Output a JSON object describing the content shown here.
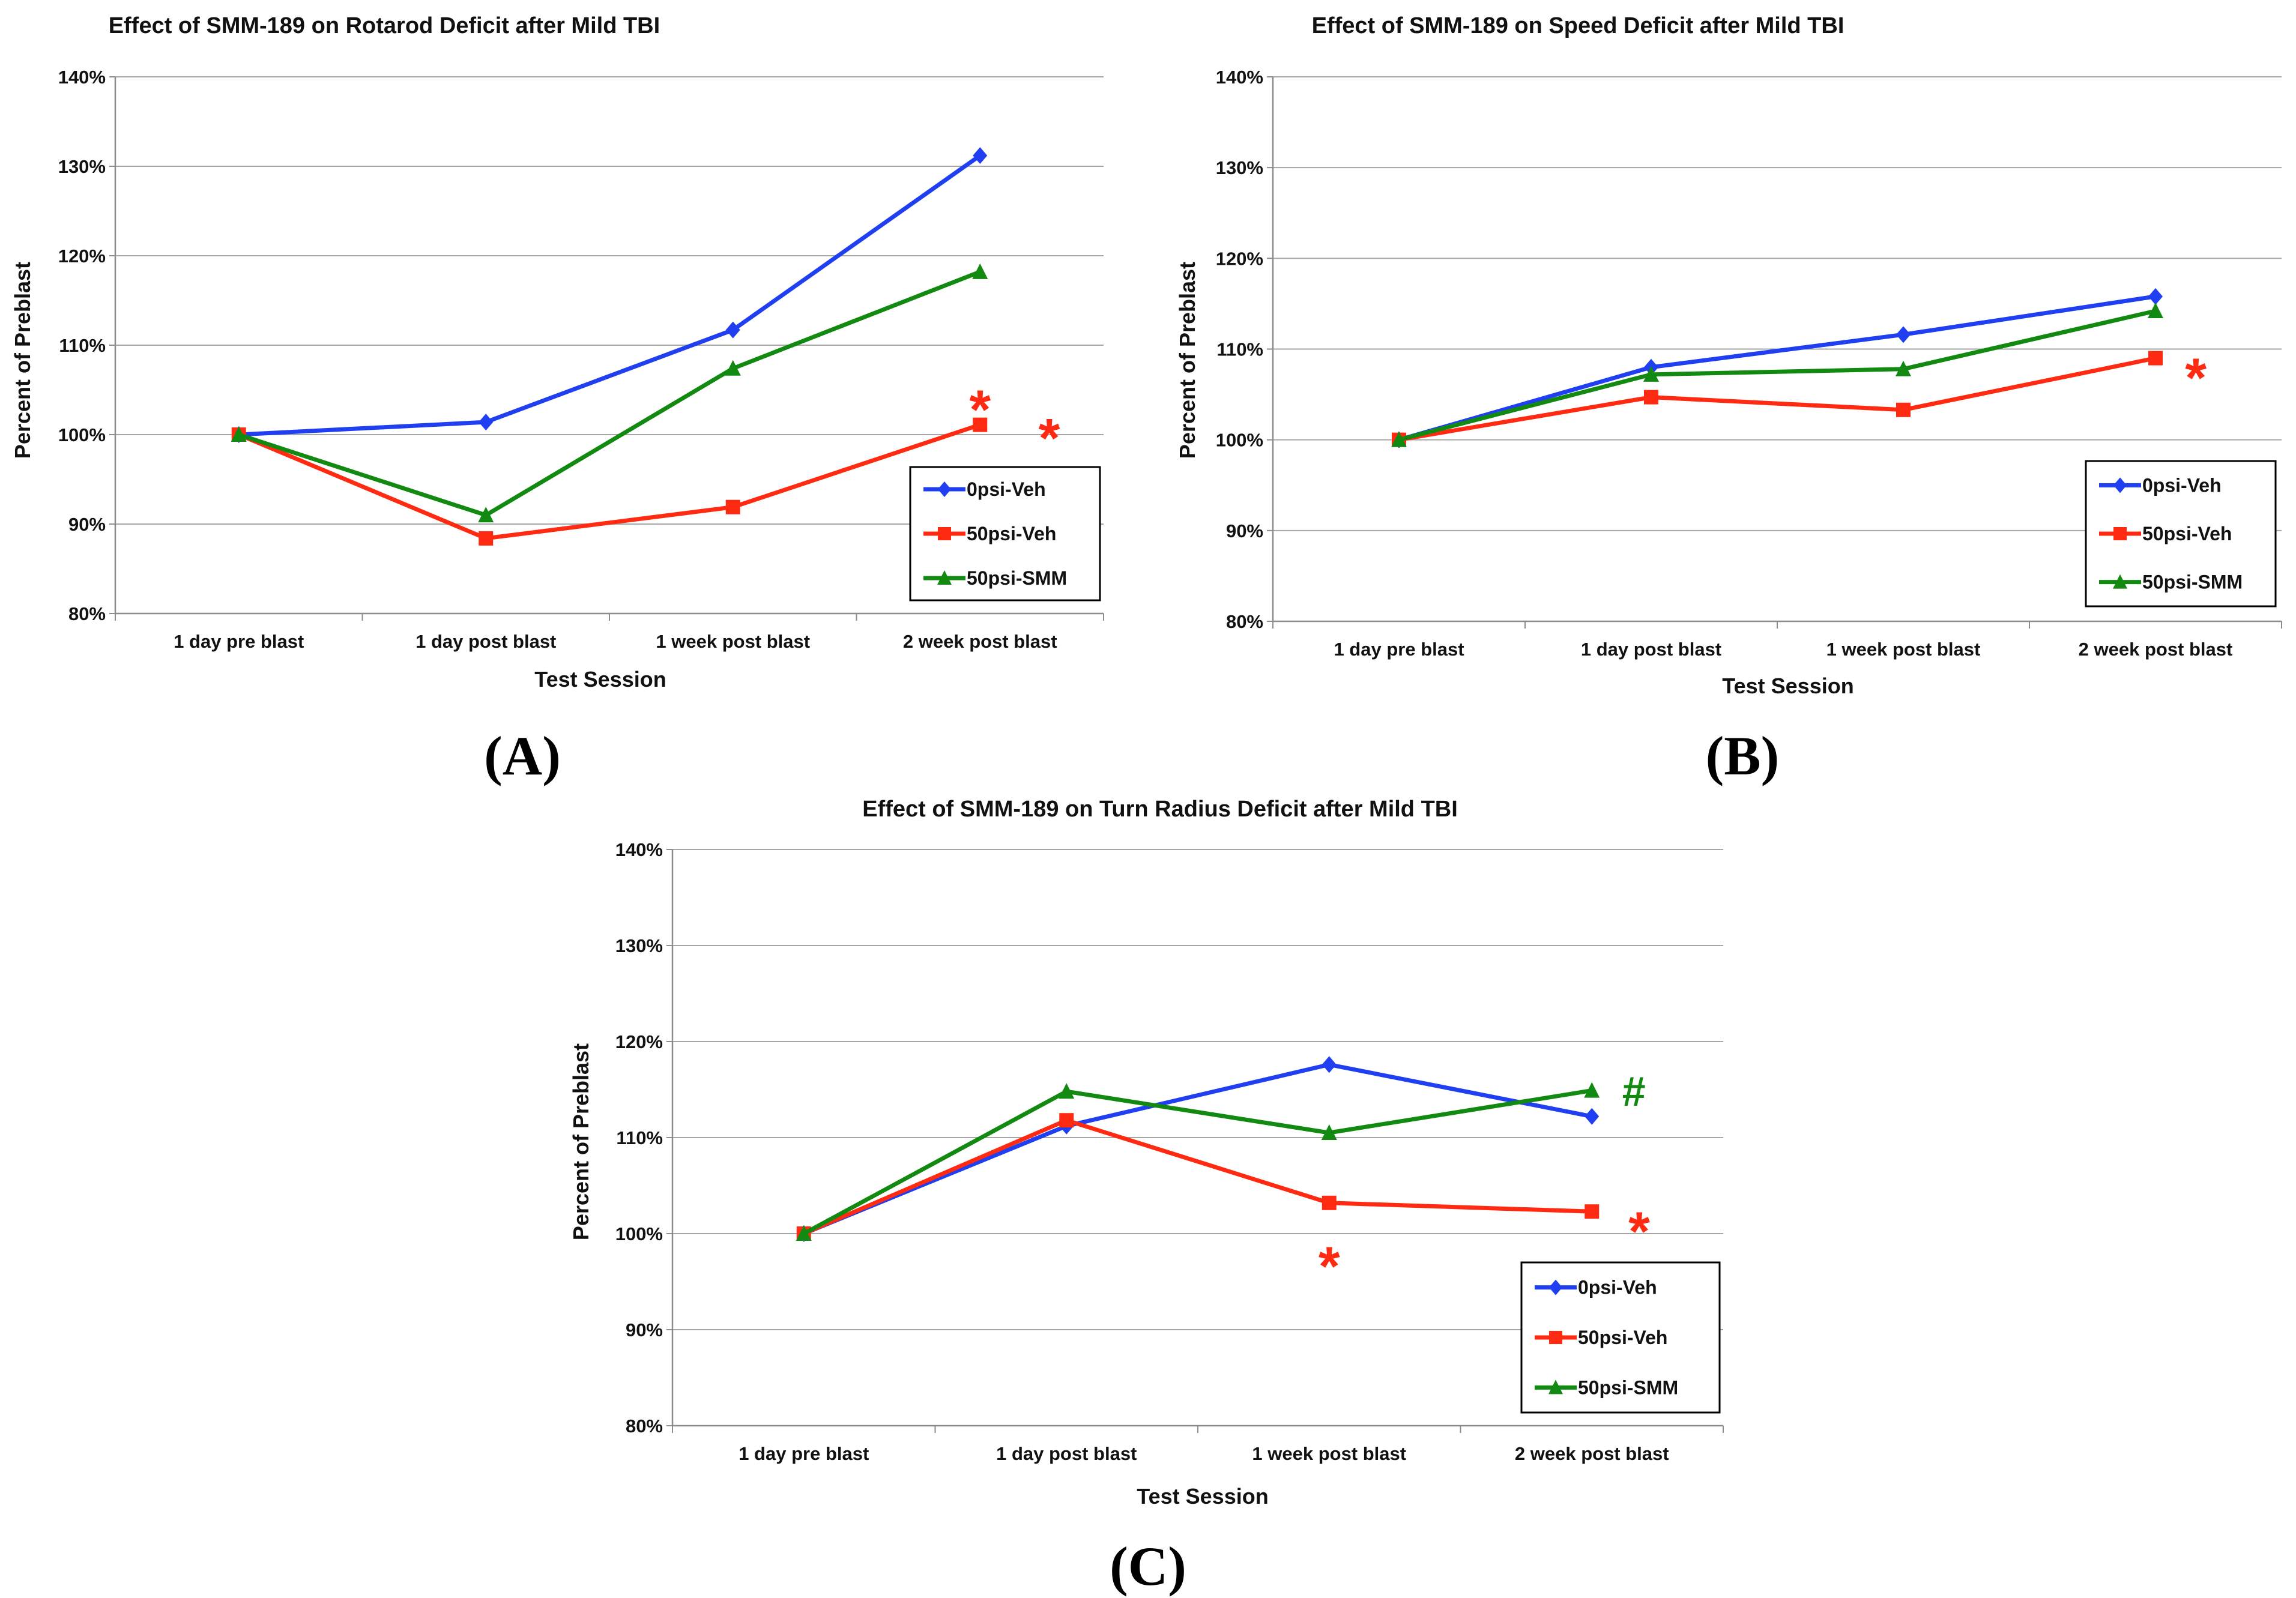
{
  "figure": {
    "panels": [
      {
        "id": "A",
        "label": "(A)"
      },
      {
        "id": "B",
        "label": "(B)"
      },
      {
        "id": "C",
        "label": "(C)"
      }
    ]
  },
  "chart_data": [
    {
      "id": "A",
      "type": "line",
      "title": "Effect of SMM-189 on Rotarod Deficit after Mild TBI",
      "xlabel": "Test Session",
      "ylabel": "Percent of Preblast",
      "categories": [
        "1 day pre blast",
        "1 day post blast",
        "1 week post blast",
        "2 week post blast"
      ],
      "ylim": [
        80,
        140
      ],
      "yticks": [
        80,
        90,
        100,
        110,
        120,
        130,
        140
      ],
      "ytick_labels": [
        "80%",
        "90%",
        "100%",
        "110%",
        "120%",
        "130%",
        "140%"
      ],
      "grid": true,
      "legend_position": "bottom-right",
      "series": [
        {
          "name": "0psi-Veh",
          "color": "#1f3ff0",
          "marker": "diamond",
          "values": [
            100,
            101.4,
            111.7,
            131.2
          ]
        },
        {
          "name": "50psi-Veh",
          "color": "#ff2a12",
          "marker": "square",
          "values": [
            100,
            88.4,
            91.9,
            101.1
          ]
        },
        {
          "name": "50psi-SMM",
          "color": "#128a12",
          "marker": "triangle",
          "values": [
            100,
            91.0,
            107.4,
            118.2
          ]
        }
      ],
      "annotations": [
        {
          "text": "*",
          "color": "#ff2a12",
          "category_index": 3,
          "value": 104.5,
          "size": "large"
        },
        {
          "text": "*",
          "color": "#ff2a12",
          "category_index": 3.28,
          "value": 101.3,
          "size": "large"
        }
      ]
    },
    {
      "id": "B",
      "type": "line",
      "title": "Effect of SMM-189 on Speed Deficit after Mild TBI",
      "xlabel": "Test Session",
      "ylabel": "Percent of Preblast",
      "categories": [
        "1 day pre blast",
        "1 day post blast",
        "1 week post blast",
        "2 week post blast"
      ],
      "ylim": [
        80,
        140
      ],
      "yticks": [
        80,
        90,
        100,
        110,
        120,
        130,
        140
      ],
      "ytick_labels": [
        "80%",
        "90%",
        "100%",
        "110%",
        "120%",
        "130%",
        "140%"
      ],
      "grid": true,
      "legend_position": "bottom-right",
      "series": [
        {
          "name": "0psi-Veh",
          "color": "#1f3ff0",
          "marker": "diamond",
          "values": [
            100,
            108.0,
            111.6,
            115.8
          ]
        },
        {
          "name": "50psi-Veh",
          "color": "#ff2a12",
          "marker": "square",
          "values": [
            100,
            104.7,
            103.3,
            109.0
          ]
        },
        {
          "name": "50psi-SMM",
          "color": "#128a12",
          "marker": "triangle",
          "values": [
            100,
            107.2,
            107.8,
            114.2
          ]
        }
      ],
      "annotations": [
        {
          "text": "*",
          "color": "#ff2a12",
          "category_index": 3.16,
          "value": 108.5,
          "size": "large"
        }
      ]
    },
    {
      "id": "C",
      "type": "line",
      "title": "Effect of SMM-189 on Turn Radius Deficit after Mild TBI",
      "xlabel": "Test Session",
      "ylabel": "Percent of Preblast",
      "categories": [
        "1 day pre blast",
        "1 day post blast",
        "1 week post blast",
        "2 week post blast"
      ],
      "ylim": [
        80,
        140
      ],
      "yticks": [
        80,
        90,
        100,
        110,
        120,
        130,
        140
      ],
      "ytick_labels": [
        "80%",
        "90%",
        "100%",
        "110%",
        "120%",
        "130%",
        "140%"
      ],
      "grid": true,
      "legend_position": "bottom-right",
      "series": [
        {
          "name": "0psi-Veh",
          "color": "#1f3ff0",
          "marker": "diamond",
          "values": [
            100,
            111.2,
            117.6,
            112.2
          ]
        },
        {
          "name": "50psi-Veh",
          "color": "#ff2a12",
          "marker": "square",
          "values": [
            100,
            111.8,
            103.2,
            102.3
          ]
        },
        {
          "name": "50psi-SMM",
          "color": "#128a12",
          "marker": "triangle",
          "values": [
            100,
            114.8,
            110.5,
            114.9
          ]
        }
      ],
      "annotations": [
        {
          "text": "#",
          "color": "#128a12",
          "category_index": 3.16,
          "value": 114.9,
          "size": "medium"
        },
        {
          "text": "*",
          "color": "#ff2a12",
          "category_index": 3.18,
          "value": 101.8,
          "size": "large"
        },
        {
          "text": "*",
          "color": "#ff2a12",
          "category_index": 2.0,
          "value": 98.2,
          "size": "large"
        }
      ]
    }
  ]
}
